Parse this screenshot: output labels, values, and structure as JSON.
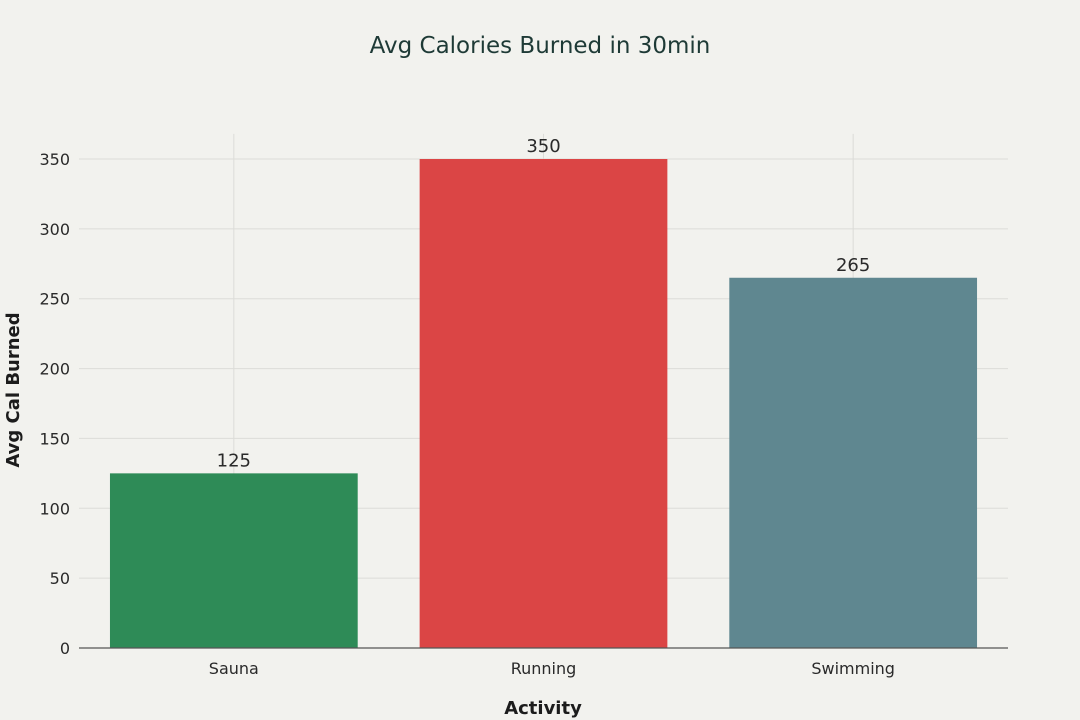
{
  "chart_data": {
    "type": "bar",
    "title": "Avg Calories Burned in 30min",
    "xlabel": "Activity",
    "ylabel": "Avg Cal Burned",
    "categories": [
      "Sauna",
      "Running",
      "Swimming"
    ],
    "values": [
      125,
      350,
      265
    ],
    "data_labels": [
      "125",
      "350",
      "265"
    ],
    "colors": [
      "#2e8b57",
      "#db4545",
      "#5f8790"
    ],
    "ylim": [
      0,
      368
    ],
    "yticks": [
      0,
      50,
      100,
      150,
      200,
      250,
      300,
      350
    ],
    "grid": true,
    "legend": false
  }
}
